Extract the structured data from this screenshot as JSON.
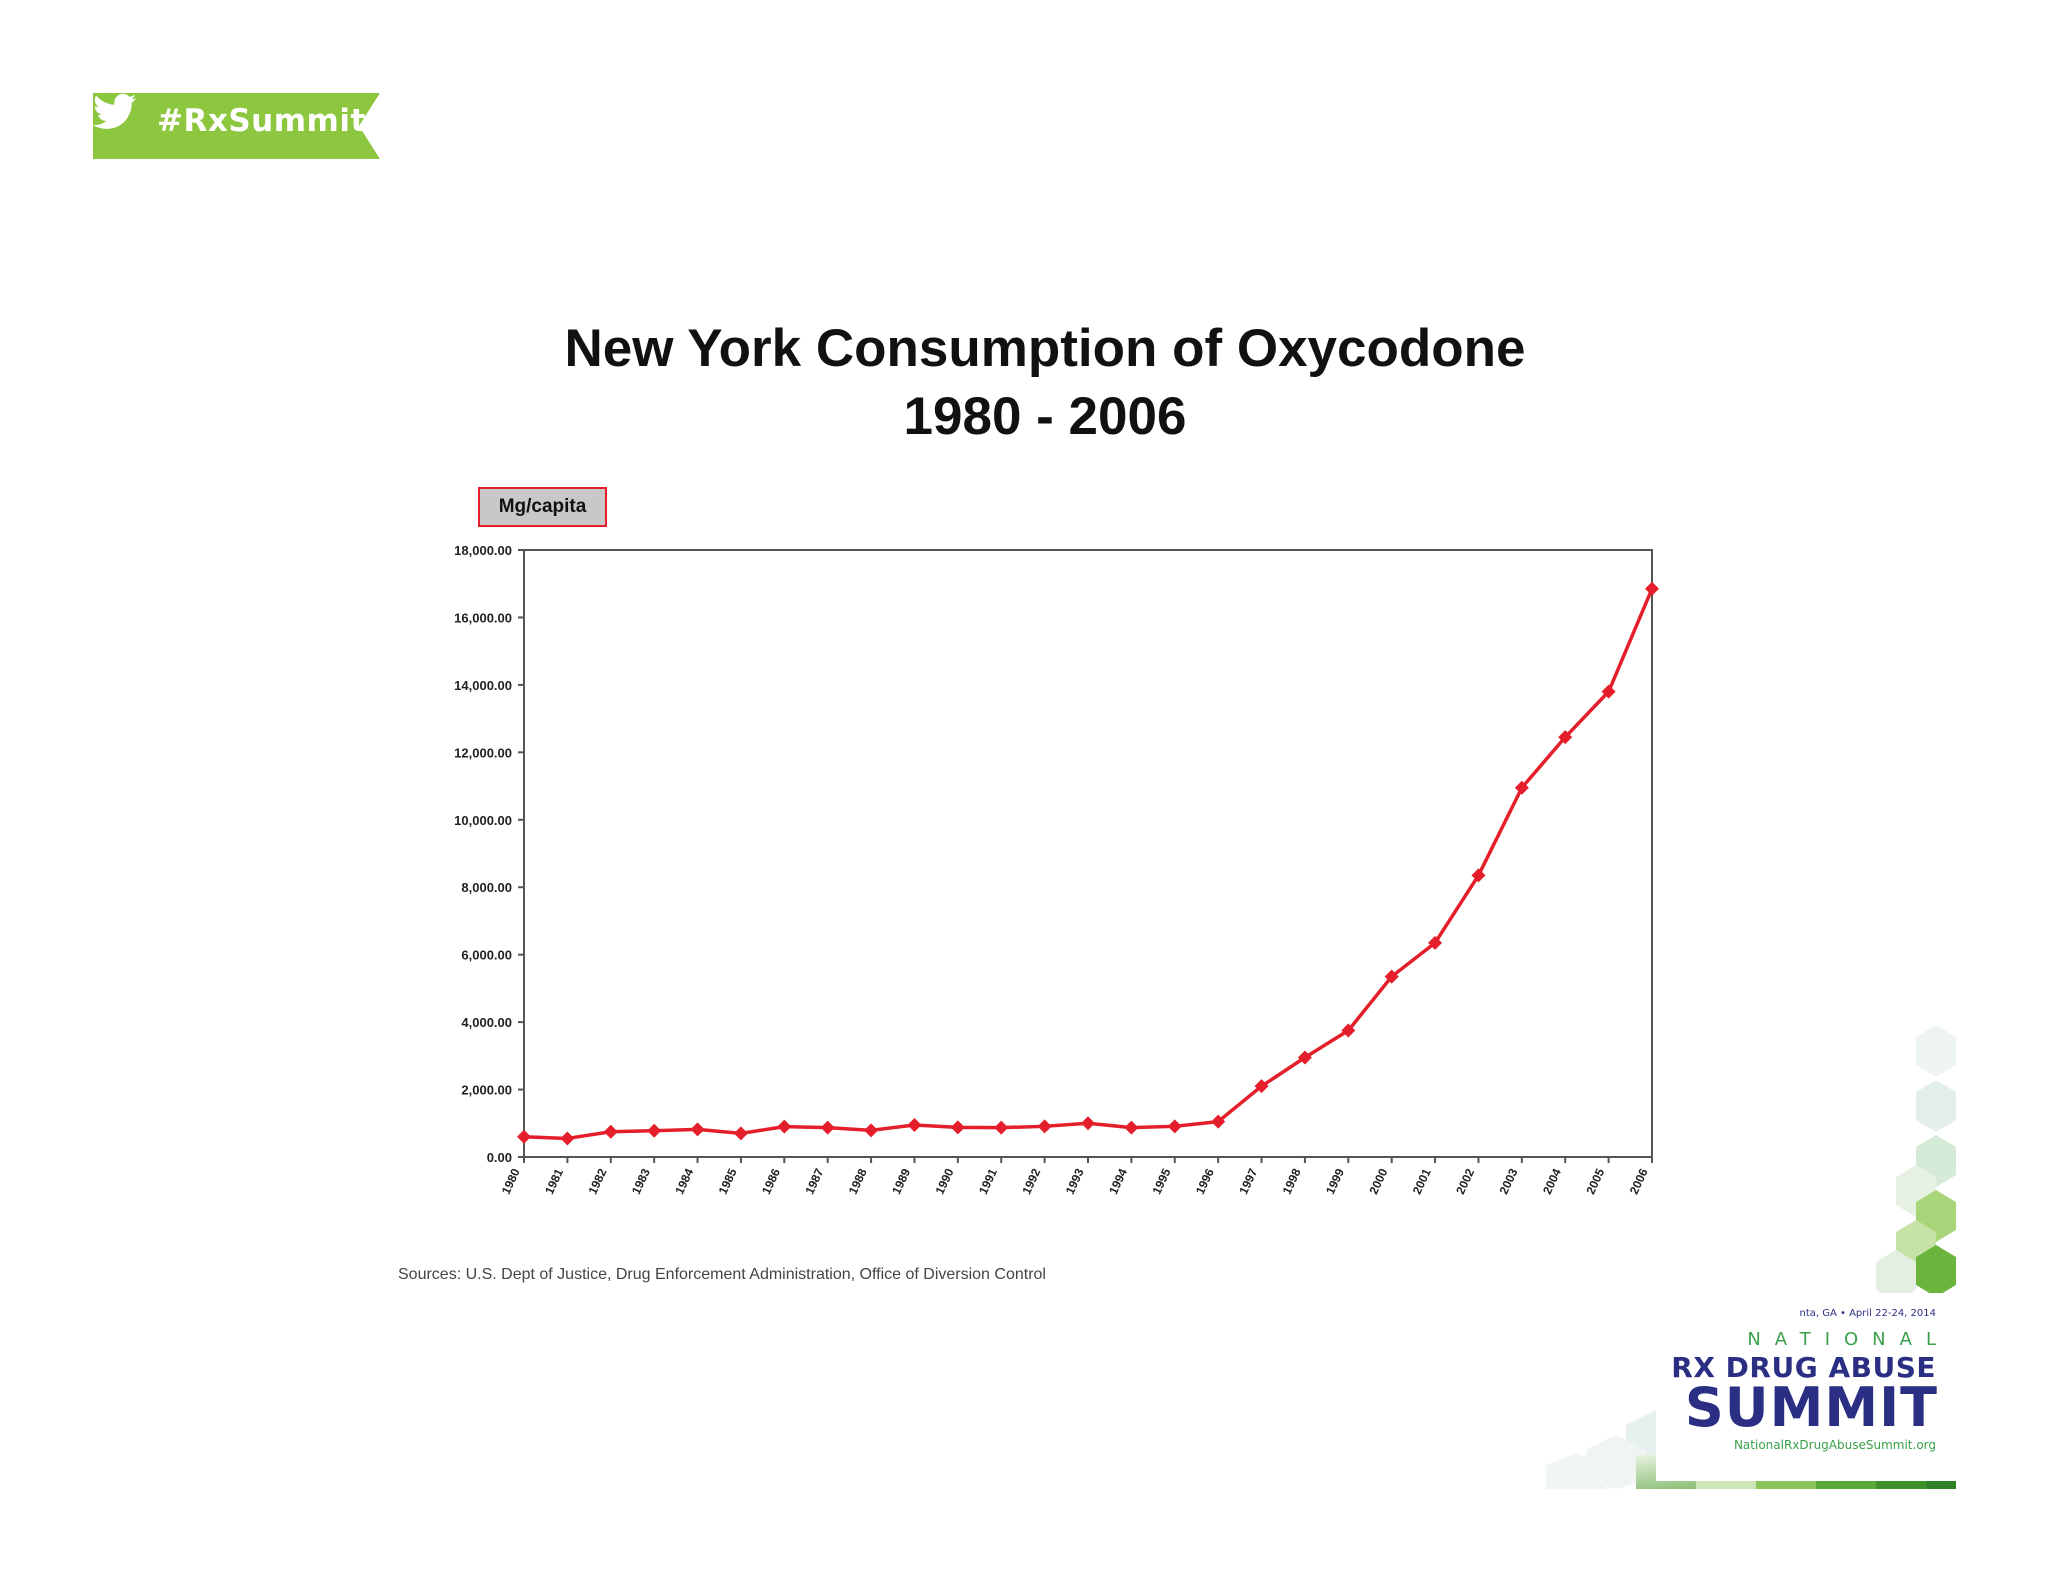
{
  "hashtag": {
    "text": "#RxSummit",
    "icon": "twitter-bird-icon",
    "color": "#8dc63f"
  },
  "chart_data": {
    "type": "line",
    "title": [
      "New York Consumption of Oxycodone",
      "1980 - 2006"
    ],
    "series": [
      {
        "name": "Mg/capita",
        "color": "#e41e2a",
        "values": [
          600,
          550,
          750,
          780,
          820,
          700,
          900,
          870,
          790,
          950,
          880,
          870,
          910,
          1000,
          870,
          910,
          1050,
          2100,
          2950,
          3750,
          5350,
          6350,
          8350,
          10950,
          12450,
          13800,
          16850
        ]
      }
    ],
    "x": [
      "1980",
      "1981",
      "1982",
      "1983",
      "1984",
      "1985",
      "1986",
      "1987",
      "1988",
      "1989",
      "1990",
      "1991",
      "1992",
      "1993",
      "1994",
      "1995",
      "1996",
      "1997",
      "1998",
      "1999",
      "2000",
      "2001",
      "2002",
      "2003",
      "2004",
      "2005",
      "2006"
    ],
    "ylim": [
      0,
      18000
    ],
    "yticks": [
      "0.00",
      "2,000.00",
      "4,000.00",
      "6,000.00",
      "8,000.00",
      "10,000.00",
      "12,000.00",
      "14,000.00",
      "16,000.00",
      "18,000.00"
    ],
    "grid": false,
    "legend": "top-left",
    "source": "Sources: U.S. Dept of Justice, Drug Enforcement Administration, Office of Diversion Control"
  },
  "logo": {
    "date": "nta, GA • April 22-24, 2014",
    "national": "NATIONAL",
    "rx": "RX DRUG ABUSE",
    "summit": "SUMMIT",
    "url": "NationalRxDrugAbuseSummit.org",
    "colors": {
      "navy": "#2b2f83",
      "green": "#3aa04a"
    }
  }
}
